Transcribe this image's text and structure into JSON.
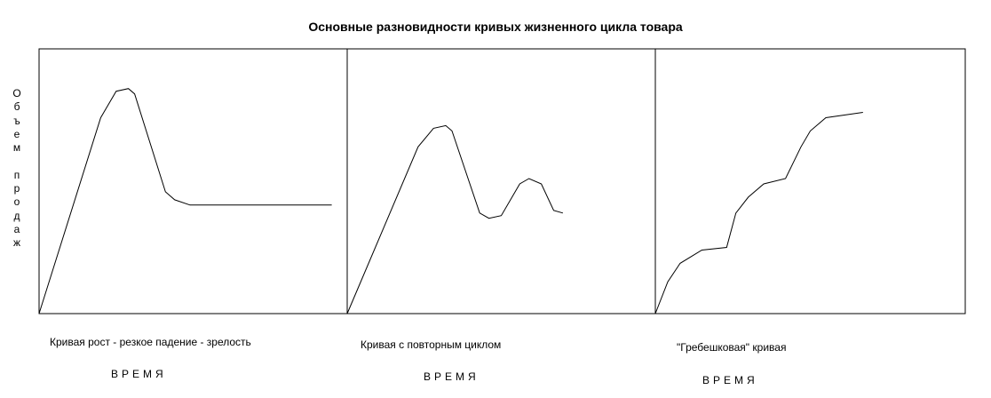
{
  "chart_data": {
    "type": "line",
    "title": "Основные разновидности кривых жизненного цикла товара",
    "ylabel": "Объем продаж",
    "ylabel_display": "О\nб\nъ\nе\nм\n\nп\nр\nо\nд\nа\nж",
    "xlabel": "ВРЕМЯ",
    "grid": false,
    "ylim": [
      0,
      100
    ],
    "charts": [
      {
        "caption": "Кривая рост - резкое падение - зрелость",
        "xlabel": "ВРЕМЯ",
        "series": [
          {
            "x": [
              0,
              20,
              25,
              29,
              31,
              41,
              44,
              49,
              95
            ],
            "y": [
              0,
              74,
              84,
              85,
              83,
              46,
              43,
              41,
              41
            ]
          }
        ]
      },
      {
        "caption": "Кривая с повторным циклом",
        "xlabel": "ВРЕМЯ",
        "series": [
          {
            "x": [
              0,
              23,
              28,
              32,
              34,
              43,
              46,
              50,
              56,
              59,
              63,
              67,
              70
            ],
            "y": [
              0,
              63,
              70,
              71,
              69,
              38,
              36,
              37,
              49,
              51,
              49,
              39,
              38
            ]
          }
        ]
      },
      {
        "caption": "\"Гребешковая\" кривая",
        "xlabel": "ВРЕМЯ",
        "series": [
          {
            "x": [
              0,
              4,
              8,
              15,
              23,
              26,
              30,
              35,
              42,
              47,
              50,
              55,
              61,
              67
            ],
            "y": [
              0,
              12,
              19,
              24,
              25,
              38,
              44,
              49,
              51,
              63,
              69,
              74,
              75,
              76
            ]
          }
        ]
      }
    ]
  }
}
